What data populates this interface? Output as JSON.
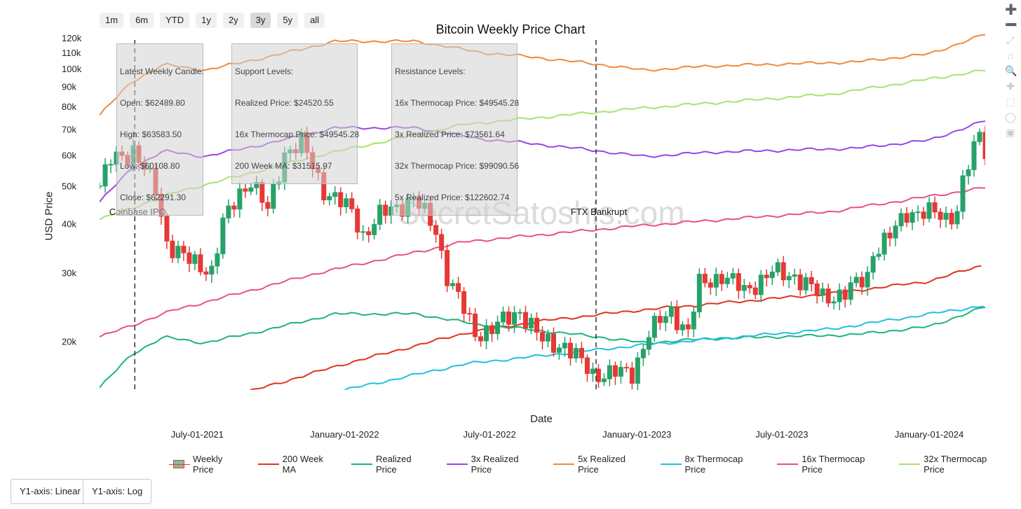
{
  "range_buttons": [
    "1m",
    "6m",
    "YTD",
    "1y",
    "2y",
    "3y",
    "5y",
    "all"
  ],
  "active_range": "3y",
  "watermark": "SecretSatoshis.com",
  "y_scale_buttons": [
    "Y1-axis: Linear",
    "Y1-axis: Log"
  ],
  "info_boxes": {
    "latest": {
      "title": "Latest Weekly Candle:",
      "lines": [
        "Open: $62489.80",
        "High: $63583.50",
        "Low: $60108.80",
        "Close: $62291.30"
      ]
    },
    "support": {
      "title": "Support Levels:",
      "lines": [
        "Realized Price: $24520.55",
        "16x Thermocap Price: $49545.28",
        "200 Week MA: $31515.97"
      ]
    },
    "resistance": {
      "title": "Resistance Levels:",
      "lines": [
        "16x Thermocap Price: $49545.28",
        "3x Realized Price: $73561.64",
        "32x Thermocap Price: $99090.56",
        "5x Realized Price: $122602.74"
      ]
    }
  },
  "colors": {
    "up": "#26a269",
    "down": "#e53935",
    "ma200": "#e0341e",
    "realized": "#1db47a",
    "realized3x": "#9a45e6",
    "realized5x": "#f08a3c",
    "thermo8": "#1ec2dd",
    "thermo16": "#ea4f86",
    "thermo32": "#a6e36d"
  },
  "chart_data": {
    "type": "candlestick",
    "title": "Bitcoin Weekly Price Chart",
    "xlabel": "Date",
    "ylabel": "USD Price",
    "y_scale": "log",
    "ylim": [
      15000,
      125000
    ],
    "x_range": [
      "2021-03-01",
      "2024-03-11"
    ],
    "x_ticks": [
      {
        "date": "2021-07-01",
        "label": "July-01-2021"
      },
      {
        "date": "2022-01-01",
        "label": "January-01-2022"
      },
      {
        "date": "2022-07-01",
        "label": "July-01-2022"
      },
      {
        "date": "2023-01-01",
        "label": "January-01-2023"
      },
      {
        "date": "2023-07-01",
        "label": "July-01-2023"
      },
      {
        "date": "2024-01-01",
        "label": "January-01-2024"
      }
    ],
    "y_ticks": [
      20000,
      30000,
      40000,
      50000,
      60000,
      70000,
      80000,
      90000,
      100000,
      110000,
      120000
    ],
    "y_tick_labels": [
      "20k",
      "30k",
      "40k",
      "50k",
      "60k",
      "70k",
      "80k",
      "90k",
      "100k",
      "110k",
      "120k"
    ],
    "annotations": [
      {
        "date": "2021-04-14",
        "label": "Coinbase IPO"
      },
      {
        "date": "2022-11-11",
        "label": "FTX Bankrupt"
      }
    ],
    "legend": [
      "Weekly Price",
      "200 Week MA",
      "Realized Price",
      "3x Realized Price",
      "5x Realized Price",
      "8x Thermocap Price",
      "16x Thermocap Price",
      "32x Thermocap Price"
    ],
    "candle_anchors": [
      [
        "2021-03-01",
        50000
      ],
      [
        "2021-03-15",
        58000
      ],
      [
        "2021-04-12",
        62000
      ],
      [
        "2021-05-10",
        49000
      ],
      [
        "2021-05-24",
        36000
      ],
      [
        "2021-06-21",
        32000
      ],
      [
        "2021-07-19",
        30500
      ],
      [
        "2021-08-02",
        40000
      ],
      [
        "2021-08-23",
        48000
      ],
      [
        "2021-09-06",
        52000
      ],
      [
        "2021-09-27",
        43000
      ],
      [
        "2021-10-18",
        61000
      ],
      [
        "2021-11-08",
        64500
      ],
      [
        "2021-12-06",
        49000
      ],
      [
        "2022-01-10",
        43000
      ],
      [
        "2022-01-24",
        37500
      ],
      [
        "2022-02-14",
        42000
      ],
      [
        "2022-03-28",
        46500
      ],
      [
        "2022-04-25",
        38500
      ],
      [
        "2022-05-09",
        29500
      ],
      [
        "2022-06-13",
        21000
      ],
      [
        "2022-07-04",
        21500
      ],
      [
        "2022-08-08",
        24000
      ],
      [
        "2022-09-05",
        20000
      ],
      [
        "2022-10-03",
        19500
      ],
      [
        "2022-11-07",
        16500
      ],
      [
        "2022-12-26",
        16600
      ],
      [
        "2023-01-16",
        21000
      ],
      [
        "2023-02-13",
        24000
      ],
      [
        "2023-03-06",
        21000
      ],
      [
        "2023-03-20",
        28000
      ],
      [
        "2023-04-17",
        29500
      ],
      [
        "2023-05-15",
        27000
      ],
      [
        "2023-06-19",
        30000
      ],
      [
        "2023-07-17",
        29500
      ],
      [
        "2023-08-21",
        26000
      ],
      [
        "2023-09-18",
        26500
      ],
      [
        "2023-10-16",
        29500
      ],
      [
        "2023-10-23",
        34000
      ],
      [
        "2023-11-13",
        37000
      ],
      [
        "2023-12-04",
        43000
      ],
      [
        "2024-01-08",
        42500
      ],
      [
        "2024-01-22",
        41500
      ],
      [
        "2024-02-05",
        43500
      ],
      [
        "2024-02-12",
        51000
      ],
      [
        "2024-02-26",
        62000
      ],
      [
        "2024-03-04",
        68000
      ],
      [
        "2024-03-11",
        62300
      ]
    ],
    "series": [
      {
        "name": "200 Week MA",
        "color": "#e0341e",
        "points": [
          [
            "2021-09-01",
            14800
          ],
          [
            "2022-01-01",
            17500
          ],
          [
            "2022-06-01",
            21000
          ],
          [
            "2022-09-01",
            22500
          ],
          [
            "2023-01-01",
            24000
          ],
          [
            "2023-09-01",
            26500
          ],
          [
            "2024-01-01",
            28500
          ],
          [
            "2024-03-11",
            31500
          ]
        ]
      },
      {
        "name": "Realized Price",
        "color": "#1db47a",
        "points": [
          [
            "2021-03-01",
            15200
          ],
          [
            "2021-04-10",
            18500
          ],
          [
            "2021-05-20",
            20500
          ],
          [
            "2021-07-10",
            19800
          ],
          [
            "2021-10-01",
            21500
          ],
          [
            "2021-12-20",
            23500
          ],
          [
            "2022-04-01",
            23500
          ],
          [
            "2022-06-20",
            22000
          ],
          [
            "2022-08-15",
            21500
          ],
          [
            "2022-11-15",
            20500
          ],
          [
            "2023-01-10",
            19800
          ],
          [
            "2023-04-01",
            20300
          ],
          [
            "2023-10-01",
            20800
          ],
          [
            "2024-01-01",
            21800
          ],
          [
            "2024-03-11",
            24500
          ]
        ]
      },
      {
        "name": "3x Realized Price",
        "color": "#9a45e6",
        "points": [
          [
            "2021-03-01",
            45500
          ],
          [
            "2021-04-10",
            55500
          ],
          [
            "2021-05-20",
            61500
          ],
          [
            "2021-07-10",
            59500
          ],
          [
            "2021-10-01",
            64500
          ],
          [
            "2021-12-20",
            70500
          ],
          [
            "2022-04-01",
            70500
          ],
          [
            "2022-06-20",
            66000
          ],
          [
            "2022-08-15",
            64500
          ],
          [
            "2022-11-15",
            61500
          ],
          [
            "2023-01-10",
            59500
          ],
          [
            "2023-04-01",
            61000
          ],
          [
            "2023-10-01",
            62500
          ],
          [
            "2024-01-01",
            65500
          ],
          [
            "2024-03-11",
            73500
          ]
        ]
      },
      {
        "name": "5x Realized Price",
        "color": "#f08a3c",
        "points": [
          [
            "2021-03-01",
            76000
          ],
          [
            "2021-04-10",
            92500
          ],
          [
            "2021-05-20",
            102500
          ],
          [
            "2021-07-10",
            99000
          ],
          [
            "2021-10-01",
            107500
          ],
          [
            "2021-12-20",
            117500
          ],
          [
            "2022-04-01",
            117500
          ],
          [
            "2022-06-20",
            110000
          ],
          [
            "2022-08-15",
            107500
          ],
          [
            "2022-11-15",
            102500
          ],
          [
            "2023-01-10",
            99000
          ],
          [
            "2023-04-01",
            101500
          ],
          [
            "2023-10-01",
            104000
          ],
          [
            "2024-01-01",
            109000
          ],
          [
            "2024-03-11",
            122500
          ]
        ]
      },
      {
        "name": "8x Thermocap Price",
        "color": "#1ec2dd",
        "points": [
          [
            "2022-01-01",
            15000
          ],
          [
            "2022-06-01",
            17500
          ],
          [
            "2023-01-01",
            19500
          ],
          [
            "2023-09-01",
            21500
          ],
          [
            "2024-03-11",
            24700
          ]
        ]
      },
      {
        "name": "16x Thermocap Price",
        "color": "#ea4f86",
        "points": [
          [
            "2021-03-01",
            20500
          ],
          [
            "2021-06-01",
            24000
          ],
          [
            "2021-12-01",
            30000
          ],
          [
            "2022-06-01",
            36000
          ],
          [
            "2023-01-01",
            39500
          ],
          [
            "2023-09-01",
            43000
          ],
          [
            "2024-03-11",
            49500
          ]
        ]
      },
      {
        "name": "32x Thermocap Price",
        "color": "#a6e36d",
        "points": [
          [
            "2021-03-01",
            41000
          ],
          [
            "2021-06-01",
            48000
          ],
          [
            "2021-12-01",
            60000
          ],
          [
            "2022-06-01",
            72000
          ],
          [
            "2023-01-01",
            79000
          ],
          [
            "2023-09-01",
            86000
          ],
          [
            "2024-03-11",
            99000
          ]
        ]
      }
    ]
  }
}
